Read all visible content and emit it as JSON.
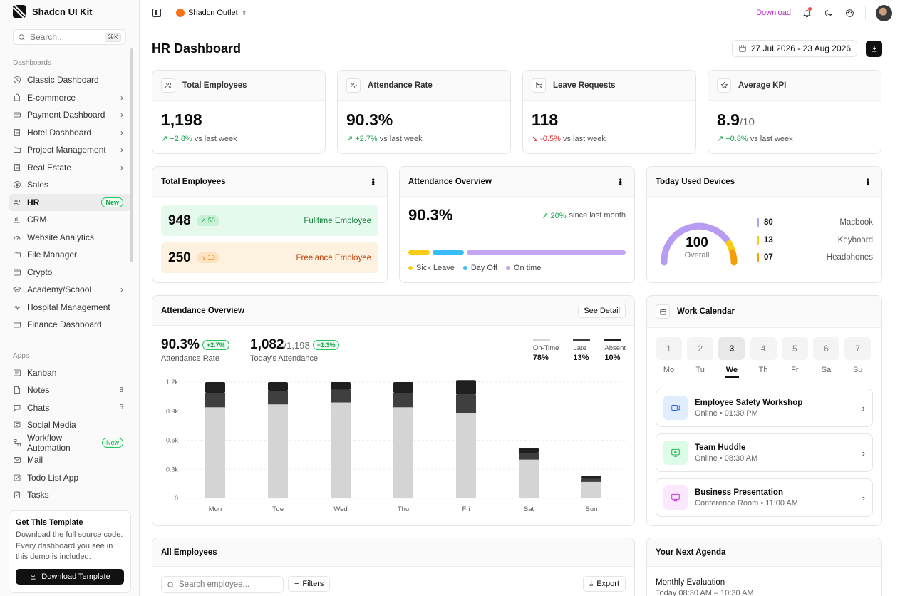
{
  "brand": {
    "name": "Shadcn UI Kit"
  },
  "search": {
    "placeholder": "Search...",
    "shortcut": "⌘K"
  },
  "sidebar": {
    "dashboards_label": "Dashboards",
    "apps_label": "Apps",
    "dashboards": [
      {
        "label": "Classic Dashboard",
        "icon": "clock-icon"
      },
      {
        "label": "E-commerce",
        "icon": "bag-icon",
        "chevron": true
      },
      {
        "label": "Payment Dashboard",
        "icon": "card-icon",
        "chevron": true
      },
      {
        "label": "Hotel Dashboard",
        "icon": "building-icon",
        "chevron": true
      },
      {
        "label": "Project Management",
        "icon": "folder-icon",
        "chevron": true
      },
      {
        "label": "Real Estate",
        "icon": "building-icon",
        "chevron": true
      },
      {
        "label": "Sales",
        "icon": "dollar-icon"
      },
      {
        "label": "HR",
        "icon": "users-icon",
        "badge": "New",
        "active": true
      },
      {
        "label": "CRM",
        "icon": "chart-icon"
      },
      {
        "label": "Website Analytics",
        "icon": "gauge-icon"
      },
      {
        "label": "File Manager",
        "icon": "folder-icon"
      },
      {
        "label": "Crypto",
        "icon": "wallet-icon"
      },
      {
        "label": "Academy/School",
        "icon": "cap-icon",
        "chevron": true
      },
      {
        "label": "Hospital Management",
        "icon": "pulse-icon"
      },
      {
        "label": "Finance Dashboard",
        "icon": "wallet-icon"
      }
    ],
    "apps": [
      {
        "label": "Kanban",
        "icon": "kanban-icon"
      },
      {
        "label": "Notes",
        "icon": "note-icon",
        "count": "8"
      },
      {
        "label": "Chats",
        "icon": "chat-icon",
        "count": "5"
      },
      {
        "label": "Social Media",
        "icon": "social-icon"
      },
      {
        "label": "Workflow Automation",
        "icon": "workflow-icon",
        "badge": "New"
      },
      {
        "label": "Mail",
        "icon": "mail-icon"
      },
      {
        "label": "Todo List App",
        "icon": "check-icon"
      },
      {
        "label": "Tasks",
        "icon": "clipboard-icon"
      }
    ]
  },
  "promo": {
    "title": "Get This Template",
    "text": "Download the full source code. Every dashboard you see in this demo is included.",
    "button": "Download Template"
  },
  "topbar": {
    "outlet": "Shadcn Outlet",
    "download": "Download"
  },
  "page": {
    "title": "HR Dashboard",
    "date_range": "27 Jul 2026 - 23 Aug 2026"
  },
  "kpis": [
    {
      "title": "Total Employees",
      "value": "1,198",
      "suffix": "",
      "delta": "+2.8%",
      "delta_text": "vs last week",
      "trend": "up",
      "icon": "users-icon"
    },
    {
      "title": "Attendance Rate",
      "value": "90.3%",
      "suffix": "",
      "delta": "+2.7%",
      "delta_text": "vs last week",
      "trend": "up",
      "icon": "user-check-icon"
    },
    {
      "title": "Leave Requests",
      "value": "118",
      "suffix": "",
      "delta": "-0.5%",
      "delta_text": "vs last week",
      "trend": "down",
      "icon": "calendar-off-icon"
    },
    {
      "title": "Average KPI",
      "value": "8.9",
      "suffix": "/10",
      "delta": "+0.8%",
      "delta_text": "vs last week",
      "trend": "up",
      "icon": "star-icon"
    }
  ],
  "total_employees": {
    "title": "Total Employees",
    "fulltime": {
      "count": "948",
      "change": "↗ 50",
      "label": "Fulltime Employee"
    },
    "freelance": {
      "count": "250",
      "change": "↘ 10",
      "label": "Freelance Employee"
    }
  },
  "attendance_small": {
    "title": "Attendance Overview",
    "value": "90.3%",
    "delta": "↗ 20%",
    "delta_text": "since last month",
    "legend": [
      "Sick Leave",
      "Day Off",
      "On time"
    ],
    "colors": [
      "#facc15",
      "#38bdf8",
      "#c4a5f5"
    ]
  },
  "devices": {
    "title": "Today Used Devices",
    "gauge_value": "100",
    "gauge_label": "Overall",
    "items": [
      {
        "value": "80",
        "name": "Macbook",
        "color": "#b79cf2"
      },
      {
        "value": "13",
        "name": "Keyboard",
        "color": "#facc15"
      },
      {
        "value": "07",
        "name": "Headphones",
        "color": "#f59e0b"
      }
    ]
  },
  "attendance_chart": {
    "title": "Attendance Overview",
    "see_detail": "See Detail",
    "rate": "90.3%",
    "rate_delta": "+2.7%",
    "rate_label": "Attendance Rate",
    "today": "1,082",
    "today_total": "/1,198",
    "today_delta": "+1.3%",
    "today_label": "Today's Attendance",
    "legend": [
      {
        "label": "On-Time",
        "value": "78%",
        "color": "#d4d4d4"
      },
      {
        "label": "Late",
        "value": "13%",
        "color": "#3f3f3f"
      },
      {
        "label": "Absent",
        "value": "10%",
        "color": "#1f1f1f"
      }
    ]
  },
  "chart_data": {
    "type": "bar",
    "stacked": true,
    "categories": [
      "Mon",
      "Tue",
      "Wed",
      "Thu",
      "Fri",
      "Sat",
      "Sun"
    ],
    "y_ticks": [
      "0",
      "0.3k",
      "0.6k",
      "0.9k",
      "1.2k"
    ],
    "ylim": [
      0,
      1200
    ],
    "series": [
      {
        "name": "On-Time",
        "color": "#d4d4d4",
        "values": [
          940,
          970,
          990,
          940,
          880,
          400,
          170
        ]
      },
      {
        "name": "Late",
        "color": "#3f3f3f",
        "values": [
          150,
          140,
          130,
          150,
          190,
          70,
          30
        ]
      },
      {
        "name": "Absent",
        "color": "#1f1f1f",
        "values": [
          110,
          90,
          80,
          110,
          150,
          50,
          30
        ]
      }
    ]
  },
  "calendar": {
    "title": "Work Calendar",
    "days": [
      {
        "num": "1",
        "dow": "Mo"
      },
      {
        "num": "2",
        "dow": "Tu"
      },
      {
        "num": "3",
        "dow": "We",
        "selected": true
      },
      {
        "num": "4",
        "dow": "Th"
      },
      {
        "num": "5",
        "dow": "Fr"
      },
      {
        "num": "6",
        "dow": "Sa"
      },
      {
        "num": "7",
        "dow": "Su"
      }
    ],
    "events": [
      {
        "title": "Employee Safety Workshop",
        "location": "Online",
        "time": "01:30 PM",
        "icon": "video-icon",
        "color": "#2563eb",
        "bg": "#e0edff"
      },
      {
        "title": "Team Huddle",
        "location": "Online",
        "time": "08:30 AM",
        "icon": "monitor-icon",
        "color": "#16a34a",
        "bg": "#dcfce7"
      },
      {
        "title": "Business Presentation",
        "location": "Conference Room",
        "time": "11:00 AM",
        "icon": "presentation-icon",
        "color": "#c026d3",
        "bg": "#fae8ff"
      }
    ]
  },
  "employees": {
    "title": "All Employees",
    "search_placeholder": "Search employee...",
    "filters": "Filters",
    "export": "Export"
  },
  "agenda": {
    "title": "Your Next Agenda",
    "item_title": "Monthly Evaluation",
    "item_time": "Today 08:30 AM – 10:30 AM"
  }
}
